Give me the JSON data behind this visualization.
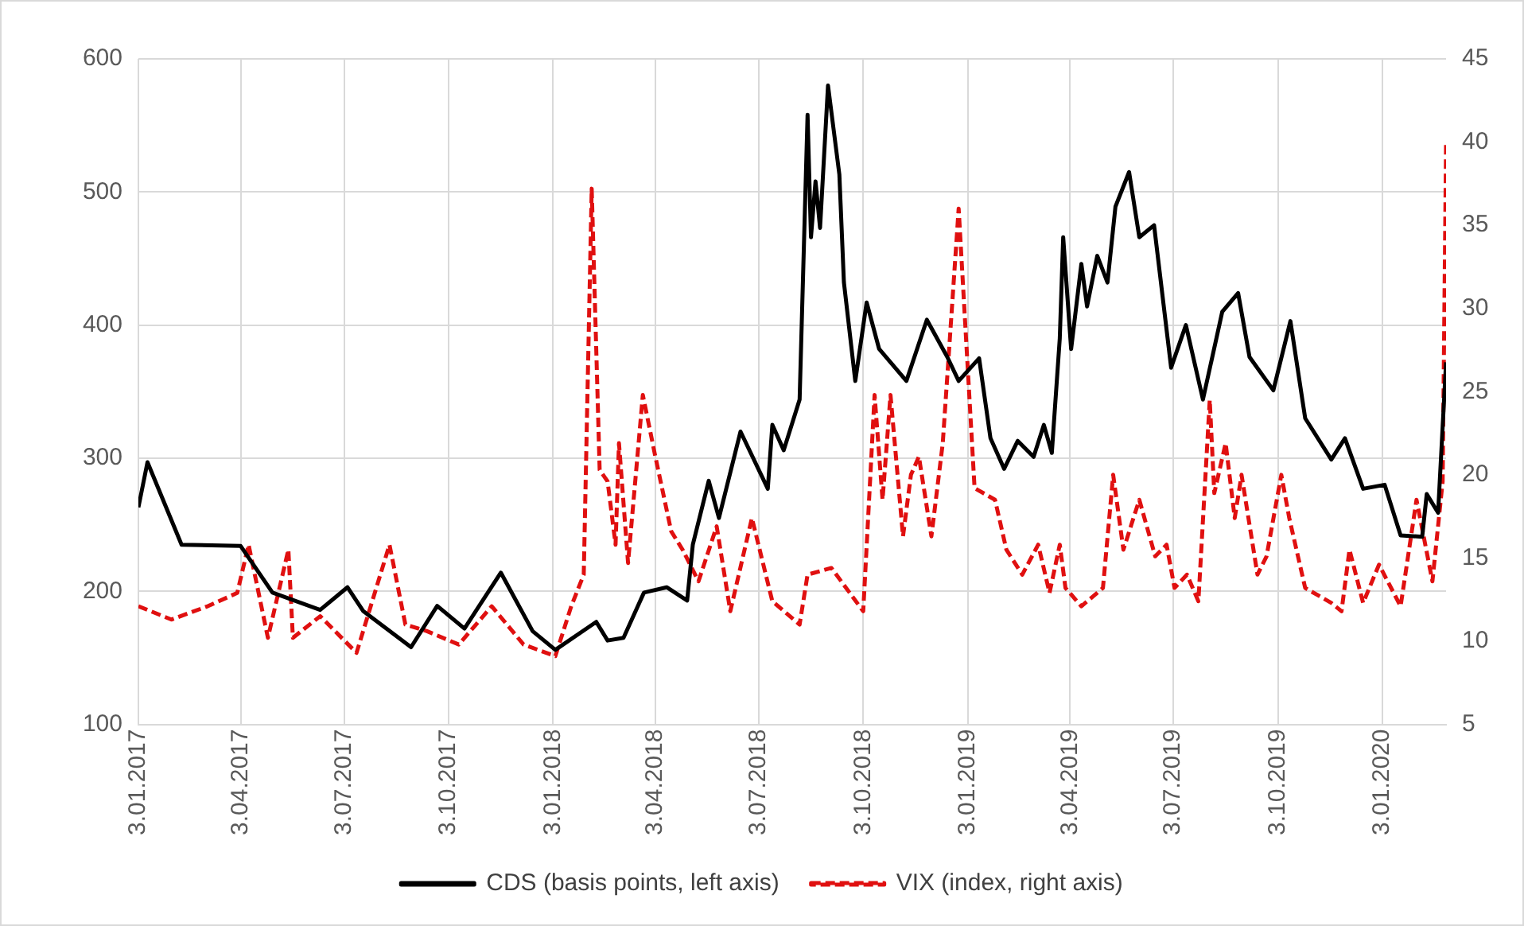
{
  "chart_data": {
    "type": "line",
    "xlim": [
      "2017-01-03",
      "2020-02-28"
    ],
    "xticks": [
      {
        "value": "2017-01-03",
        "label": "3.01.2017"
      },
      {
        "value": "2017-04-03",
        "label": "3.04.2017"
      },
      {
        "value": "2017-07-03",
        "label": "3.07.2017"
      },
      {
        "value": "2017-10-03",
        "label": "3.10.2017"
      },
      {
        "value": "2018-01-03",
        "label": "3.01.2018"
      },
      {
        "value": "2018-04-03",
        "label": "3.04.2018"
      },
      {
        "value": "2018-07-03",
        "label": "3.07.2018"
      },
      {
        "value": "2018-10-03",
        "label": "3.10.2018"
      },
      {
        "value": "2019-01-03",
        "label": "3.01.2019"
      },
      {
        "value": "2019-04-03",
        "label": "3.04.2019"
      },
      {
        "value": "2019-07-03",
        "label": "3.07.2019"
      },
      {
        "value": "2019-10-03",
        "label": "3.10.2019"
      },
      {
        "value": "2020-01-03",
        "label": "3.01.2020"
      }
    ],
    "ylim": [
      100,
      600
    ],
    "yticks": [
      100,
      200,
      300,
      400,
      500,
      600
    ],
    "y2lim": [
      5,
      45
    ],
    "y2ticks": [
      5,
      10,
      15,
      20,
      25,
      30,
      35,
      40,
      45
    ],
    "grid": true,
    "legend": "bottom",
    "marker": "none",
    "series": [
      {
        "name": "CDS (basis points, left axis)",
        "color": "#000000",
        "line_style": "solid",
        "x": [
          "2017-01-03",
          "2017-01-11",
          "2017-02-10",
          "2017-04-03",
          "2017-05-01",
          "2017-06-12",
          "2017-07-06",
          "2017-07-20",
          "2017-08-31",
          "2017-09-23",
          "2017-10-17",
          "2017-11-18",
          "2017-12-16",
          "2018-01-05",
          "2018-02-10",
          "2018-02-20",
          "2018-03-06",
          "2018-03-24",
          "2018-04-13",
          "2018-05-01",
          "2018-05-06",
          "2018-05-20",
          "2018-05-29",
          "2018-06-17",
          "2018-07-11",
          "2018-07-15",
          "2018-07-25",
          "2018-08-08",
          "2018-08-15",
          "2018-08-18",
          "2018-08-22",
          "2018-08-26",
          "2018-09-02",
          "2018-09-12",
          "2018-09-16",
          "2018-09-26",
          "2018-10-06",
          "2018-10-17",
          "2018-11-10",
          "2018-11-28",
          "2018-12-16",
          "2018-12-26",
          "2019-01-13",
          "2019-01-23",
          "2019-02-04",
          "2019-02-16",
          "2019-03-02",
          "2019-03-11",
          "2019-03-18",
          "2019-03-25",
          "2019-03-28",
          "2019-04-04",
          "2019-04-13",
          "2019-04-18",
          "2019-04-27",
          "2019-05-06",
          "2019-05-13",
          "2019-05-25",
          "2019-06-03",
          "2019-06-16",
          "2019-07-01",
          "2019-07-14",
          "2019-07-29",
          "2019-08-15",
          "2019-08-29",
          "2019-09-08",
          "2019-09-29",
          "2019-10-14",
          "2019-10-27",
          "2019-11-19",
          "2019-12-01",
          "2019-12-17",
          "2020-01-05",
          "2020-01-19",
          "2020-02-07",
          "2020-02-11",
          "2020-02-21",
          "2020-02-28"
        ],
        "values": [
          263,
          297,
          235,
          234,
          199,
          186,
          203,
          185,
          158,
          189,
          172,
          214,
          170,
          156,
          177,
          163,
          165,
          199,
          203,
          193,
          235,
          283,
          255,
          320,
          277,
          325,
          306,
          344,
          558,
          466,
          508,
          473,
          580,
          513,
          432,
          358,
          417,
          382,
          358,
          404,
          376,
          358,
          375,
          315,
          292,
          313,
          301,
          325,
          304,
          390,
          466,
          382,
          446,
          414,
          452,
          432,
          489,
          515,
          466,
          475,
          368,
          400,
          344,
          410,
          424,
          376,
          351,
          403,
          330,
          299,
          315,
          277,
          280,
          242,
          241,
          273,
          259,
          372
        ]
      },
      {
        "name": "VIX (index, right axis)",
        "color": "#e01010",
        "line_style": "dashed",
        "axis": "y2",
        "x": [
          "2017-01-03",
          "2017-02-01",
          "2017-03-05",
          "2017-03-31",
          "2017-04-10",
          "2017-04-27",
          "2017-05-15",
          "2017-05-19",
          "2017-06-12",
          "2017-07-14",
          "2017-08-12",
          "2017-08-26",
          "2017-09-14",
          "2017-10-12",
          "2017-11-10",
          "2017-12-08",
          "2018-01-05",
          "2018-01-19",
          "2018-01-30",
          "2018-02-06",
          "2018-02-13",
          "2018-02-20",
          "2018-02-27",
          "2018-03-02",
          "2018-03-10",
          "2018-03-23",
          "2018-04-03",
          "2018-04-17",
          "2018-04-27",
          "2018-05-11",
          "2018-05-27",
          "2018-06-08",
          "2018-06-27",
          "2018-07-15",
          "2018-08-08",
          "2018-08-15",
          "2018-09-05",
          "2018-10-03",
          "2018-10-13",
          "2018-10-20",
          "2018-10-27",
          "2018-11-07",
          "2018-11-14",
          "2018-11-21",
          "2018-12-02",
          "2018-12-12",
          "2018-12-26",
          "2019-01-09",
          "2019-01-27",
          "2019-02-06",
          "2019-02-20",
          "2019-03-06",
          "2019-03-16",
          "2019-03-25",
          "2019-03-30",
          "2019-04-13",
          "2019-05-02",
          "2019-05-11",
          "2019-05-20",
          "2019-06-03",
          "2019-06-17",
          "2019-06-27",
          "2019-07-04",
          "2019-07-15",
          "2019-07-25",
          "2019-08-04",
          "2019-08-08",
          "2019-08-18",
          "2019-08-26",
          "2019-09-01",
          "2019-09-15",
          "2019-09-23",
          "2019-10-06",
          "2019-10-13",
          "2019-10-27",
          "2019-11-19",
          "2019-11-28",
          "2019-12-05",
          "2019-12-17",
          "2019-12-31",
          "2020-01-19",
          "2020-02-02",
          "2020-02-16",
          "2020-02-25",
          "2020-02-28"
        ],
        "values": [
          12.1,
          11.3,
          12.1,
          12.9,
          15.8,
          10.2,
          15.5,
          10.2,
          11.5,
          9.3,
          15.8,
          11.0,
          10.6,
          9.8,
          12.1,
          9.8,
          9.1,
          12.1,
          14.0,
          37.2,
          20.3,
          19.6,
          15.8,
          21.9,
          14.7,
          24.8,
          21.1,
          16.6,
          15.5,
          13.6,
          16.9,
          11.8,
          17.4,
          12.4,
          11.0,
          14.0,
          14.4,
          11.8,
          24.8,
          18.5,
          24.8,
          16.3,
          20.0,
          21.1,
          16.3,
          21.9,
          36.0,
          19.2,
          18.5,
          15.5,
          14.0,
          15.8,
          12.9,
          15.8,
          13.2,
          12.1,
          13.2,
          20.0,
          15.5,
          18.5,
          15.1,
          15.8,
          13.2,
          14.0,
          12.4,
          24.5,
          18.9,
          21.9,
          17.4,
          20.0,
          14.0,
          15.1,
          20.0,
          17.4,
          13.2,
          12.3,
          11.8,
          15.5,
          12.3,
          14.6,
          12.1,
          18.5,
          13.6,
          19.6,
          39.9
        ]
      }
    ]
  }
}
